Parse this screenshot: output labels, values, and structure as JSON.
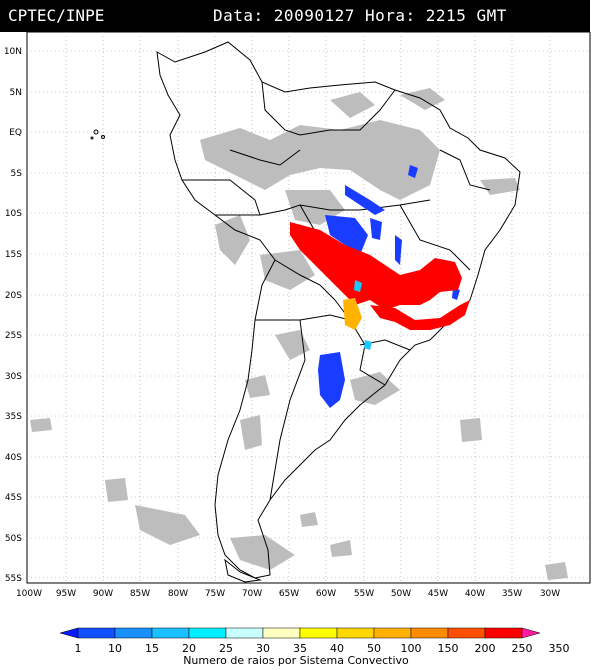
{
  "header": {
    "source": "CPTEC/INPE",
    "datetime": "Data: 20090127 Hora: 2215 GMT"
  },
  "map": {
    "lat_labels": [
      "10N",
      "5N",
      "EQ",
      "5S",
      "10S",
      "15S",
      "20S",
      "25S",
      "30S",
      "35S",
      "40S",
      "45S",
      "50S",
      "55S"
    ],
    "lon_labels": [
      "100W",
      "95W",
      "90W",
      "85W",
      "80W",
      "75W",
      "70W",
      "65W",
      "60W",
      "55W",
      "50W",
      "45W",
      "40W",
      "35W",
      "30W"
    ],
    "colors": {
      "land_outline": "#000000",
      "cloud_gray": "#bdbdbd",
      "grid": "#999999",
      "lightning_blue": "#1a3cff",
      "lightning_red": "#ff0000",
      "lightning_orange": "#ffb300",
      "lightning_cyan": "#19c9ff"
    }
  },
  "legend": {
    "title": "Numero de raios por Sistema Convectivo",
    "values": [
      "1",
      "10",
      "15",
      "20",
      "25",
      "30",
      "35",
      "40",
      "50",
      "100",
      "150",
      "200",
      "250",
      "350"
    ],
    "colors": [
      "#0a1aff",
      "#1050ff",
      "#1a90ff",
      "#1ac0ff",
      "#00f0ff",
      "#c8ffff",
      "#ffffc0",
      "#ffff00",
      "#ffd700",
      "#ffb000",
      "#ff8c00",
      "#ff5000",
      "#ff0000",
      "#ff1aa0"
    ]
  }
}
